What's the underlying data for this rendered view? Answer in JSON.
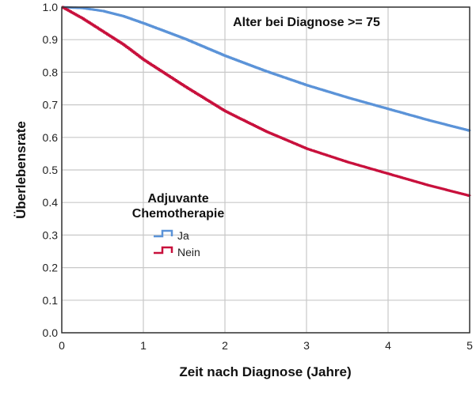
{
  "chart_data": {
    "type": "line",
    "subtype": "kaplan-meier-step",
    "title": "Alter bei Diagnose >= 75",
    "xlabel": "Zeit nach Diagnose (Jahre)",
    "ylabel": "Überlebensrate",
    "xlim": [
      0,
      5
    ],
    "ylim": [
      0.0,
      1.0
    ],
    "xticks": [
      "0",
      "1",
      "2",
      "3",
      "4",
      "5"
    ],
    "yticks": [
      "0.0",
      "0.1",
      "0.2",
      "0.3",
      "0.4",
      "0.5",
      "0.6",
      "0.7",
      "0.8",
      "0.9",
      "1.0"
    ],
    "grid": true,
    "legend": {
      "title_line1": "Adjuvante",
      "title_line2": "Chemotherapie",
      "position": "inside-left-middle"
    },
    "x": [
      0,
      0.25,
      0.5,
      0.75,
      1,
      1.5,
      2,
      2.5,
      3,
      3.5,
      4,
      4.5,
      5
    ],
    "series": [
      {
        "name": "Ja",
        "color": "#5b93d8",
        "values": [
          1.0,
          0.997,
          0.988,
          0.972,
          0.95,
          0.903,
          0.85,
          0.803,
          0.76,
          0.722,
          0.687,
          0.652,
          0.62
        ]
      },
      {
        "name": "Nein",
        "color": "#c8103c",
        "values": [
          1.0,
          0.965,
          0.925,
          0.885,
          0.838,
          0.757,
          0.68,
          0.618,
          0.565,
          0.524,
          0.488,
          0.452,
          0.42
        ]
      }
    ]
  }
}
